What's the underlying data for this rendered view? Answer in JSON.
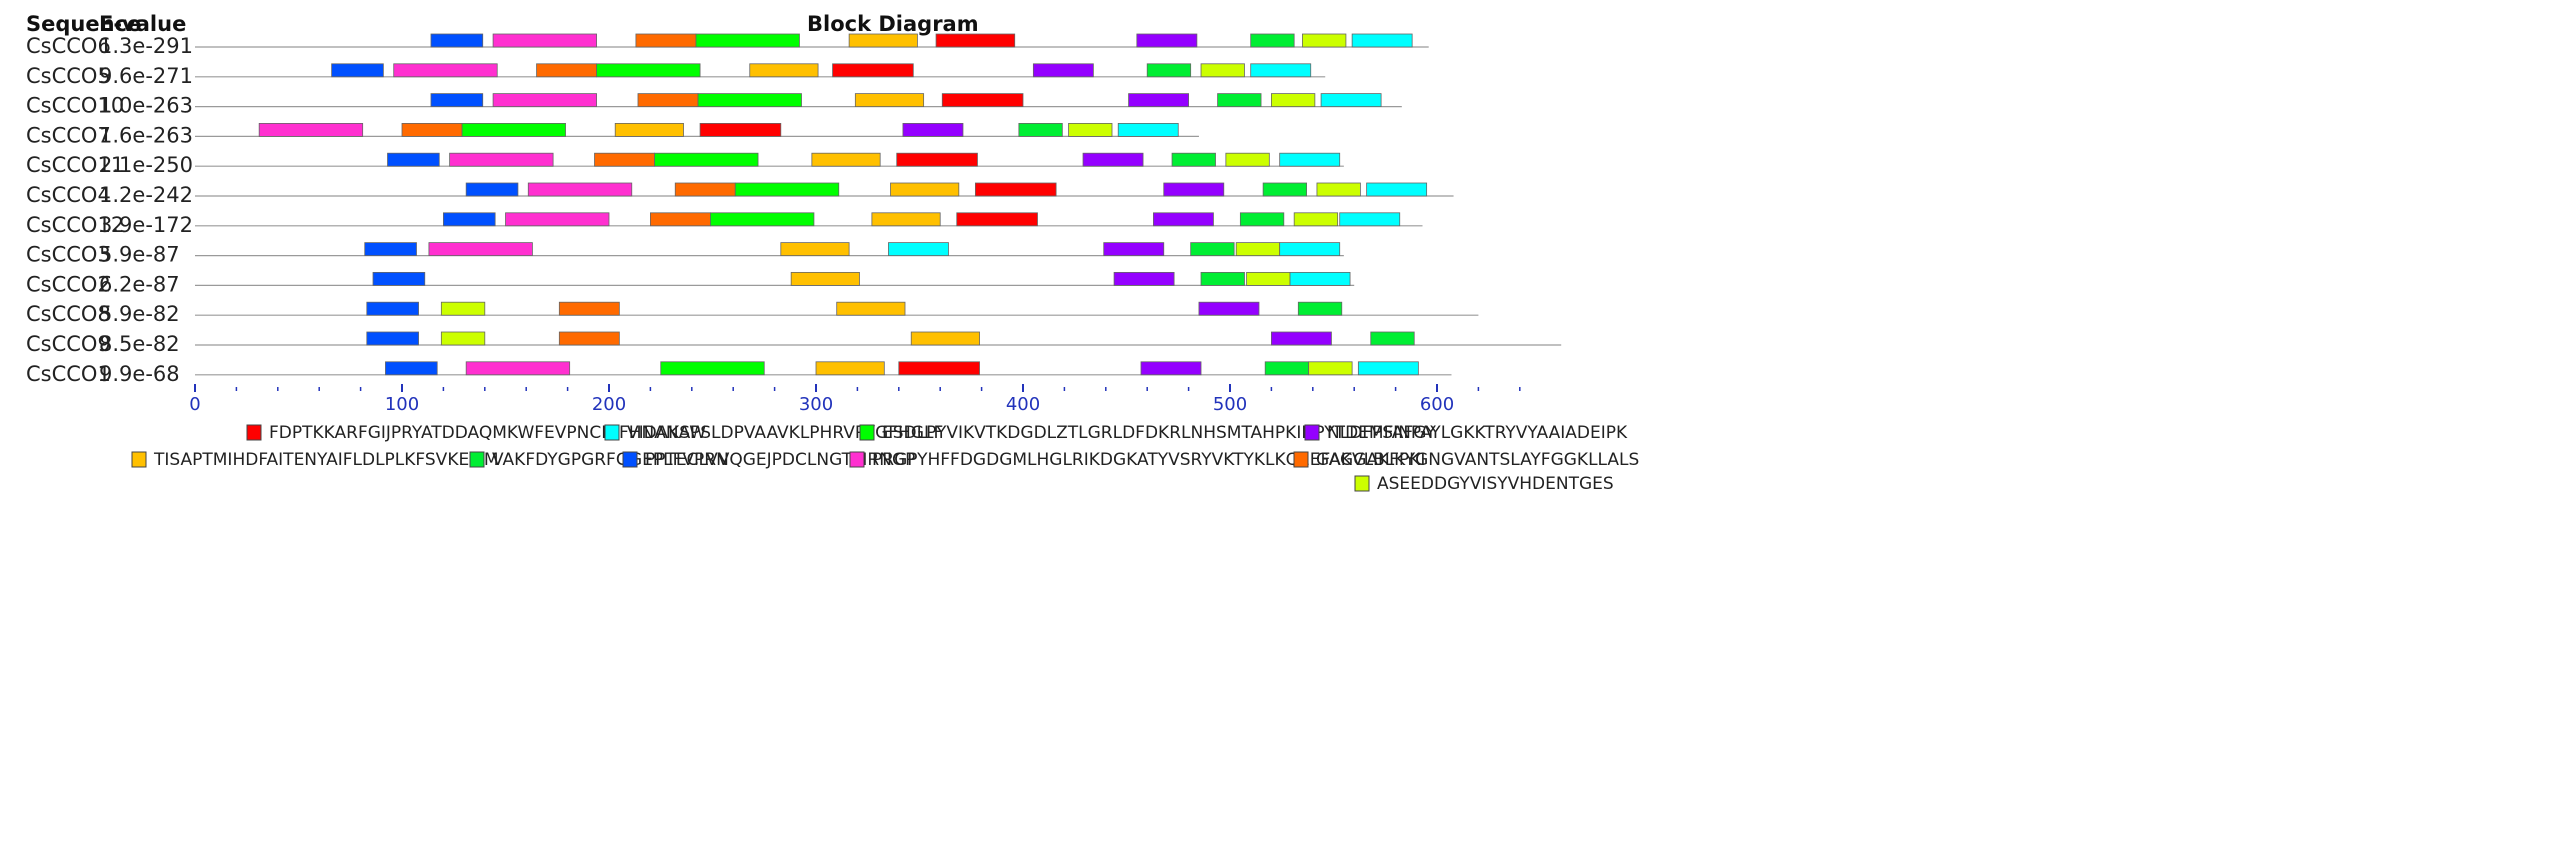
{
  "headers": {
    "sequence": "Sequence",
    "evalue": "E-value",
    "title": "Block Diagram"
  },
  "chart_data": {
    "type": "block-diagram",
    "title": "Block Diagram",
    "xlim": [
      0,
      660
    ],
    "xticks": [
      0,
      100,
      200,
      300,
      400,
      500,
      600
    ],
    "minor_tick_step": 20,
    "motifs": [
      {
        "id": "m1",
        "color": "#ff0000",
        "label": "FDPTKKARFGIJPRYATDDAQMKWFEVPNCNIFHNANAW"
      },
      {
        "id": "m2",
        "color": "#00ffff",
        "label": "VIDAKSPSLDPVAAVKLPHRVPYGFHGLF"
      },
      {
        "id": "m3",
        "color": "#00ff00",
        "label": "ESDLPYVIKVTKDGDLZTLGRLDFDKRLNHSMTAHPKIDPYTDEMFAFGY"
      },
      {
        "id": "m4",
        "color": "#9400ff",
        "label": "NLDFPSINPAYLGKKTRYVYAAIADEIPK"
      },
      {
        "id": "m5",
        "color": "#ffc000",
        "label": "TISAPTMIHDFAITENYAIFLDLPLKFSVKEMM"
      },
      {
        "id": "m6",
        "color": "#00ee33",
        "label": "VAKFDYGPGRFGGEPLFVPRN"
      },
      {
        "id": "m7",
        "color": "#0050ff",
        "label": "PPTECLVVQGEJPDCLNGTYIRNGP"
      },
      {
        "id": "m8",
        "color": "#ff30d0",
        "label": "PRGPYHFFDGDGMLHGLRIKDGKATYVSRYVKTYKLKQEEFAGGAKFPKI"
      },
      {
        "id": "m9",
        "color": "#ff6a00",
        "label": "GAKVLBLKYGNGVANTSLAYFGGKLLALS"
      },
      {
        "id": "m10",
        "color": "#ccff00",
        "label": "ASEEDDGYVISYVHDENTGES"
      }
    ],
    "rows": [
      {
        "name": "CsCCO6",
        "evalue": "1.3e-291",
        "length": 596,
        "blocks": [
          {
            "motif": "m7",
            "start": 114,
            "end": 139
          },
          {
            "motif": "m8",
            "start": 144,
            "end": 194
          },
          {
            "motif": "m9",
            "start": 213,
            "end": 242
          },
          {
            "motif": "m3",
            "start": 242,
            "end": 292
          },
          {
            "motif": "m5",
            "start": 316,
            "end": 349
          },
          {
            "motif": "m1",
            "start": 358,
            "end": 396
          },
          {
            "motif": "m4",
            "start": 455,
            "end": 484
          },
          {
            "motif": "m6",
            "start": 510,
            "end": 531
          },
          {
            "motif": "m10",
            "start": 535,
            "end": 556
          },
          {
            "motif": "m2",
            "start": 559,
            "end": 588
          }
        ]
      },
      {
        "name": "CsCCO5",
        "evalue": "9.6e-271",
        "length": 546,
        "blocks": [
          {
            "motif": "m7",
            "start": 66,
            "end": 91
          },
          {
            "motif": "m8",
            "start": 96,
            "end": 146
          },
          {
            "motif": "m9",
            "start": 165,
            "end": 194
          },
          {
            "motif": "m3",
            "start": 194,
            "end": 244
          },
          {
            "motif": "m5",
            "start": 268,
            "end": 301
          },
          {
            "motif": "m1",
            "start": 308,
            "end": 347
          },
          {
            "motif": "m4",
            "start": 405,
            "end": 434
          },
          {
            "motif": "m6",
            "start": 460,
            "end": 481
          },
          {
            "motif": "m10",
            "start": 486,
            "end": 507
          },
          {
            "motif": "m2",
            "start": 510,
            "end": 539
          }
        ]
      },
      {
        "name": "CsCCO10",
        "evalue": "1.0e-263",
        "length": 583,
        "blocks": [
          {
            "motif": "m7",
            "start": 114,
            "end": 139
          },
          {
            "motif": "m8",
            "start": 144,
            "end": 194
          },
          {
            "motif": "m9",
            "start": 214,
            "end": 243
          },
          {
            "motif": "m3",
            "start": 243,
            "end": 293
          },
          {
            "motif": "m5",
            "start": 319,
            "end": 352
          },
          {
            "motif": "m1",
            "start": 361,
            "end": 400
          },
          {
            "motif": "m4",
            "start": 451,
            "end": 480
          },
          {
            "motif": "m6",
            "start": 494,
            "end": 515
          },
          {
            "motif": "m10",
            "start": 520,
            "end": 541
          },
          {
            "motif": "m2",
            "start": 544,
            "end": 573
          }
        ]
      },
      {
        "name": "CsCCO7",
        "evalue": "1.6e-263",
        "length": 485,
        "blocks": [
          {
            "motif": "m8",
            "start": 31,
            "end": 81
          },
          {
            "motif": "m9",
            "start": 100,
            "end": 129
          },
          {
            "motif": "m3",
            "start": 129,
            "end": 179
          },
          {
            "motif": "m5",
            "start": 203,
            "end": 236
          },
          {
            "motif": "m1",
            "start": 244,
            "end": 283
          },
          {
            "motif": "m4",
            "start": 342,
            "end": 371
          },
          {
            "motif": "m6",
            "start": 398,
            "end": 419
          },
          {
            "motif": "m10",
            "start": 422,
            "end": 443
          },
          {
            "motif": "m2",
            "start": 446,
            "end": 475
          }
        ]
      },
      {
        "name": "CsCCO11",
        "evalue": "2.1e-250",
        "length": 555,
        "blocks": [
          {
            "motif": "m7",
            "start": 93,
            "end": 118
          },
          {
            "motif": "m8",
            "start": 123,
            "end": 173
          },
          {
            "motif": "m9",
            "start": 193,
            "end": 222
          },
          {
            "motif": "m3",
            "start": 222,
            "end": 272
          },
          {
            "motif": "m5",
            "start": 298,
            "end": 331
          },
          {
            "motif": "m1",
            "start": 339,
            "end": 378
          },
          {
            "motif": "m4",
            "start": 429,
            "end": 458
          },
          {
            "motif": "m6",
            "start": 472,
            "end": 493
          },
          {
            "motif": "m10",
            "start": 498,
            "end": 519
          },
          {
            "motif": "m2",
            "start": 524,
            "end": 553
          }
        ]
      },
      {
        "name": "CsCCO4",
        "evalue": "1.2e-242",
        "length": 608,
        "blocks": [
          {
            "motif": "m7",
            "start": 131,
            "end": 156
          },
          {
            "motif": "m8",
            "start": 161,
            "end": 211
          },
          {
            "motif": "m9",
            "start": 232,
            "end": 261
          },
          {
            "motif": "m3",
            "start": 261,
            "end": 311
          },
          {
            "motif": "m5",
            "start": 336,
            "end": 369
          },
          {
            "motif": "m1",
            "start": 377,
            "end": 416
          },
          {
            "motif": "m4",
            "start": 468,
            "end": 497
          },
          {
            "motif": "m6",
            "start": 516,
            "end": 537
          },
          {
            "motif": "m10",
            "start": 542,
            "end": 563
          },
          {
            "motif": "m2",
            "start": 566,
            "end": 595
          }
        ]
      },
      {
        "name": "CsCCO12",
        "evalue": "3.9e-172",
        "length": 593,
        "blocks": [
          {
            "motif": "m7",
            "start": 120,
            "end": 145
          },
          {
            "motif": "m8",
            "start": 150,
            "end": 200
          },
          {
            "motif": "m9",
            "start": 220,
            "end": 249
          },
          {
            "motif": "m3",
            "start": 249,
            "end": 299
          },
          {
            "motif": "m5",
            "start": 327,
            "end": 360
          },
          {
            "motif": "m1",
            "start": 368,
            "end": 407
          },
          {
            "motif": "m4",
            "start": 463,
            "end": 492
          },
          {
            "motif": "m6",
            "start": 505,
            "end": 526
          },
          {
            "motif": "m10",
            "start": 531,
            "end": 552
          },
          {
            "motif": "m2",
            "start": 553,
            "end": 582
          }
        ]
      },
      {
        "name": "CsCCO3",
        "evalue": "5.9e-87",
        "length": 555,
        "blocks": [
          {
            "motif": "m7",
            "start": 82,
            "end": 107
          },
          {
            "motif": "m8",
            "start": 113,
            "end": 163
          },
          {
            "motif": "m5",
            "start": 283,
            "end": 316
          },
          {
            "motif": "m2",
            "start": 335,
            "end": 364
          },
          {
            "motif": "m4",
            "start": 439,
            "end": 468
          },
          {
            "motif": "m6",
            "start": 481,
            "end": 502
          },
          {
            "motif": "m10",
            "start": 503,
            "end": 524
          },
          {
            "motif": "m2",
            "start": 524,
            "end": 553
          }
        ]
      },
      {
        "name": "CsCCO2",
        "evalue": "6.2e-87",
        "length": 560,
        "blocks": [
          {
            "motif": "m7",
            "start": 86,
            "end": 111
          },
          {
            "motif": "m5",
            "start": 288,
            "end": 321
          },
          {
            "motif": "m4",
            "start": 444,
            "end": 473
          },
          {
            "motif": "m6",
            "start": 486,
            "end": 507
          },
          {
            "motif": "m10",
            "start": 508,
            "end": 529
          },
          {
            "motif": "m2",
            "start": 529,
            "end": 558
          }
        ]
      },
      {
        "name": "CsCCO8",
        "evalue": "5.9e-82",
        "length": 620,
        "blocks": [
          {
            "motif": "m7",
            "start": 83,
            "end": 108
          },
          {
            "motif": "m10",
            "start": 119,
            "end": 140
          },
          {
            "motif": "m9",
            "start": 176,
            "end": 205
          },
          {
            "motif": "m5",
            "start": 310,
            "end": 343
          },
          {
            "motif": "m4",
            "start": 485,
            "end": 514
          },
          {
            "motif": "m6",
            "start": 533,
            "end": 554
          }
        ]
      },
      {
        "name": "CsCCO9",
        "evalue": "8.5e-82",
        "length": 660,
        "blocks": [
          {
            "motif": "m7",
            "start": 83,
            "end": 108
          },
          {
            "motif": "m10",
            "start": 119,
            "end": 140
          },
          {
            "motif": "m9",
            "start": 176,
            "end": 205
          },
          {
            "motif": "m5",
            "start": 346,
            "end": 379
          },
          {
            "motif": "m4",
            "start": 520,
            "end": 549
          },
          {
            "motif": "m6",
            "start": 568,
            "end": 589
          }
        ]
      },
      {
        "name": "CsCCO1",
        "evalue": "9.9e-68",
        "length": 607,
        "blocks": [
          {
            "motif": "m7",
            "start": 92,
            "end": 117
          },
          {
            "motif": "m8",
            "start": 131,
            "end": 181
          },
          {
            "motif": "m3",
            "start": 225,
            "end": 275
          },
          {
            "motif": "m5",
            "start": 300,
            "end": 333
          },
          {
            "motif": "m1",
            "start": 340,
            "end": 379
          },
          {
            "motif": "m4",
            "start": 457,
            "end": 486
          },
          {
            "motif": "m6",
            "start": 517,
            "end": 538
          },
          {
            "motif": "m10",
            "start": 538,
            "end": 559
          },
          {
            "motif": "m2",
            "start": 562,
            "end": 591
          }
        ]
      }
    ]
  }
}
